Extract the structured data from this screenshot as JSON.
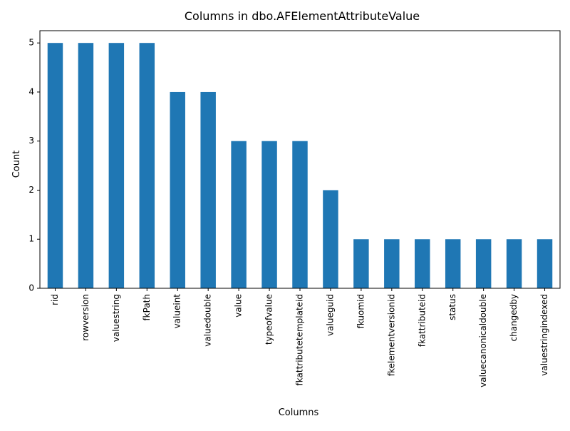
{
  "chart_data": {
    "type": "bar",
    "title": "Columns in dbo.AFElementAttributeValue",
    "xlabel": "Columns",
    "ylabel": "Count",
    "categories": [
      "rid",
      "rowversion",
      "valuestring",
      "fkPath",
      "valueint",
      "valuedouble",
      "value",
      "typeofvalue",
      "fkattributetemplateid",
      "valueguid",
      "fkuomid",
      "fkelementversionid",
      "fkattributeid",
      "status",
      "valuecanonicaldouble",
      "changedby",
      "valuestringindexed"
    ],
    "values": [
      5,
      5,
      5,
      5,
      4,
      4,
      3,
      3,
      3,
      2,
      1,
      1,
      1,
      1,
      1,
      1,
      1
    ],
    "ylim": [
      0,
      5.25
    ],
    "yticks": [
      0,
      1,
      2,
      3,
      4,
      5
    ],
    "grid": false,
    "legend": "none",
    "bar_color": "#1f77b4"
  }
}
